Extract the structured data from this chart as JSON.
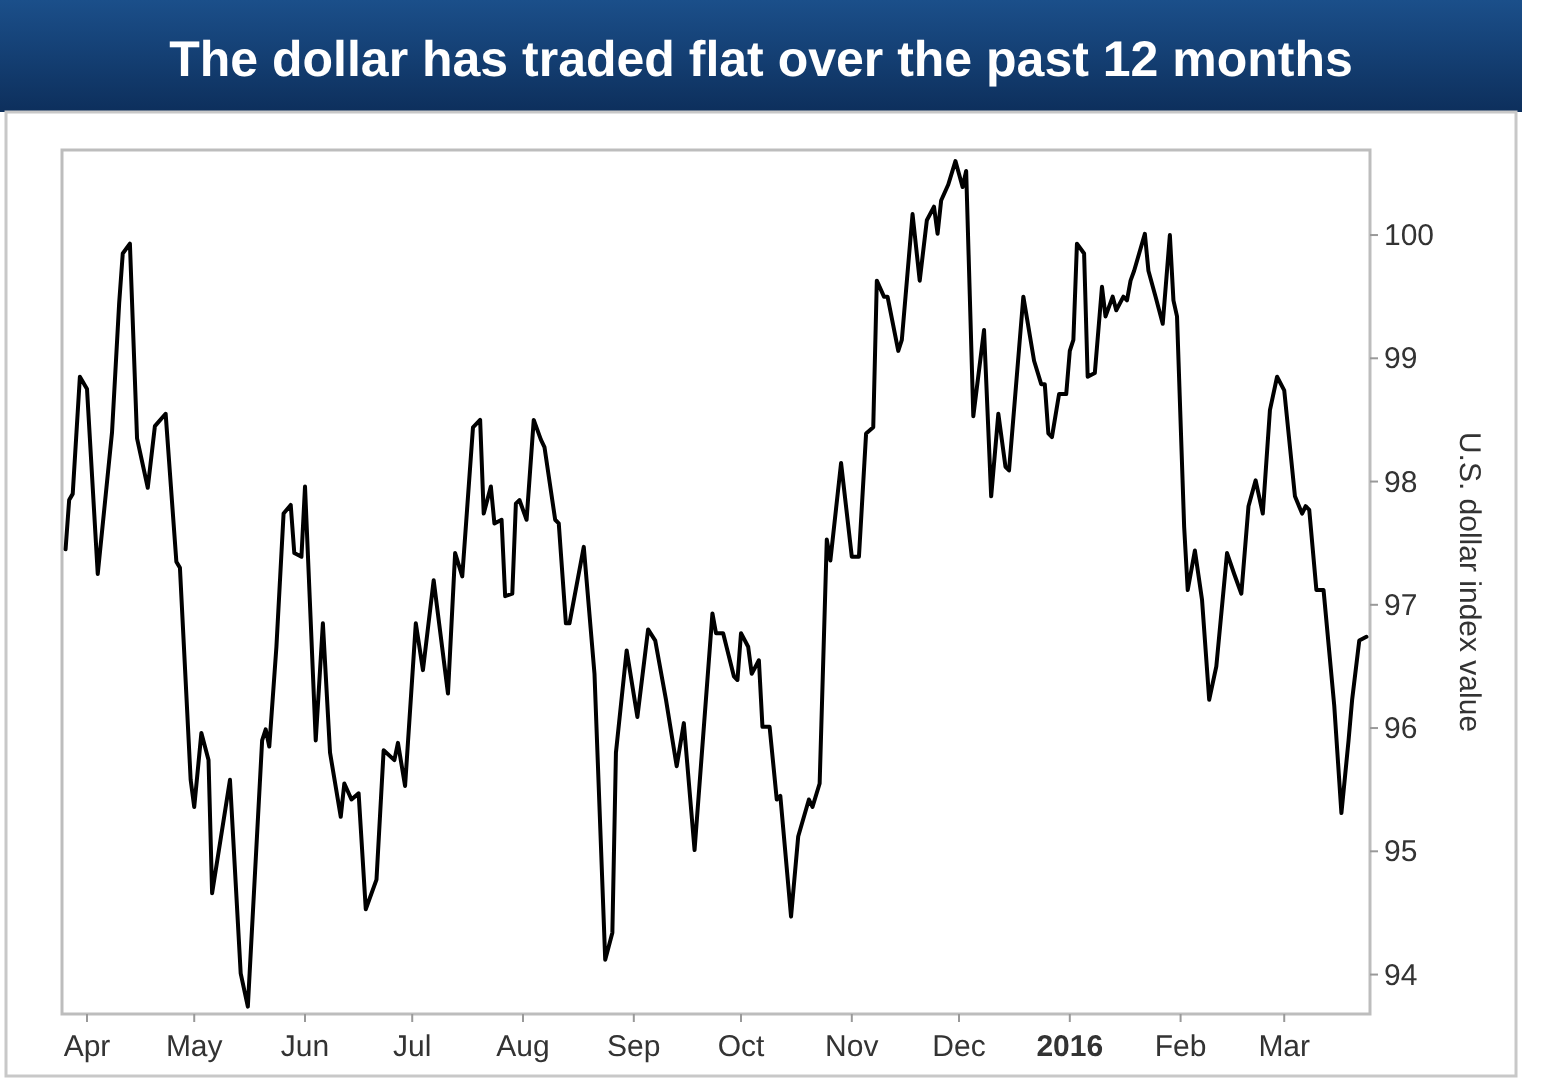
{
  "chart_data": {
    "type": "line",
    "title": "The dollar has traded flat over the past 12 months",
    "ylabel": "U.S. dollar index value",
    "x": [
      "2015-03-26",
      "2015-03-27",
      "2015-03-28",
      "2015-03-30",
      "2015-04-01",
      "2015-04-04",
      "2015-04-08",
      "2015-04-10",
      "2015-04-11",
      "2015-04-13",
      "2015-04-15",
      "2015-04-18",
      "2015-04-20",
      "2015-04-23",
      "2015-04-26",
      "2015-04-27",
      "2015-04-30",
      "2015-05-01",
      "2015-05-03",
      "2015-05-05",
      "2015-05-06",
      "2015-05-11",
      "2015-05-14",
      "2015-05-16",
      "2015-05-20",
      "2015-05-21",
      "2015-05-22",
      "2015-05-24",
      "2015-05-26",
      "2015-05-28",
      "2015-05-29",
      "2015-05-31",
      "2015-06-01",
      "2015-06-04",
      "2015-06-06",
      "2015-06-08",
      "2015-06-11",
      "2015-06-12",
      "2015-06-14",
      "2015-06-16",
      "2015-06-18",
      "2015-06-21",
      "2015-06-23",
      "2015-06-26",
      "2015-06-27",
      "2015-06-29",
      "2015-07-02",
      "2015-07-04",
      "2015-07-07",
      "2015-07-09",
      "2015-07-11",
      "2015-07-13",
      "2015-07-15",
      "2015-07-18",
      "2015-07-20",
      "2015-07-21",
      "2015-07-23",
      "2015-07-24",
      "2015-07-26",
      "2015-07-27",
      "2015-07-29",
      "2015-07-30",
      "2015-07-31",
      "2015-08-02",
      "2015-08-04",
      "2015-08-06",
      "2015-08-07",
      "2015-08-10",
      "2015-08-11",
      "2015-08-13",
      "2015-08-14",
      "2015-08-18",
      "2015-08-21",
      "2015-08-24",
      "2015-08-26",
      "2015-08-27",
      "2015-08-30",
      "2015-09-02",
      "2015-09-05",
      "2015-09-07",
      "2015-09-10",
      "2015-09-13",
      "2015-09-15",
      "2015-09-18",
      "2015-09-23",
      "2015-09-24",
      "2015-09-26",
      "2015-09-29",
      "2015-09-30",
      "2015-10-01",
      "2015-10-03",
      "2015-10-04",
      "2015-10-06",
      "2015-10-07",
      "2015-10-09",
      "2015-10-11",
      "2015-10-12",
      "2015-10-15",
      "2015-10-17",
      "2015-10-20",
      "2015-10-21",
      "2015-10-23",
      "2015-10-25",
      "2015-10-26",
      "2015-10-29",
      "2015-11-01",
      "2015-11-03",
      "2015-11-05",
      "2015-11-07",
      "2015-11-08",
      "2015-11-10",
      "2015-11-11",
      "2015-11-14",
      "2015-11-15",
      "2015-11-18",
      "2015-11-20",
      "2015-11-22",
      "2015-11-24",
      "2015-11-25",
      "2015-11-26",
      "2015-11-28",
      "2015-11-30",
      "2015-12-02",
      "2015-12-03",
      "2015-12-05",
      "2015-12-08",
      "2015-12-10",
      "2015-12-12",
      "2015-12-14",
      "2015-12-15",
      "2015-12-19",
      "2015-12-22",
      "2015-12-24",
      "2015-12-25",
      "2015-12-26",
      "2015-12-27",
      "2015-12-29",
      "2015-12-31",
      "2016-01-01",
      "2016-01-02",
      "2016-01-03",
      "2016-01-05",
      "2016-01-06",
      "2016-01-08",
      "2016-01-10",
      "2016-01-11",
      "2016-01-13",
      "2016-01-14",
      "2016-01-16",
      "2016-01-17",
      "2016-01-18",
      "2016-01-19",
      "2016-01-22",
      "2016-01-23",
      "2016-01-25",
      "2016-01-27",
      "2016-01-29",
      "2016-01-30",
      "2016-01-31",
      "2016-02-02",
      "2016-02-03",
      "2016-02-05",
      "2016-02-07",
      "2016-02-09",
      "2016-02-11",
      "2016-02-14",
      "2016-02-16",
      "2016-02-18",
      "2016-02-20",
      "2016-02-22",
      "2016-02-24",
      "2016-02-26",
      "2016-02-28",
      "2016-03-01",
      "2016-03-04",
      "2016-03-06",
      "2016-03-07",
      "2016-03-08",
      "2016-03-10",
      "2016-03-11",
      "2016-03-12",
      "2016-03-15",
      "2016-03-17",
      "2016-03-19",
      "2016-03-20",
      "2016-03-22",
      "2016-03-24"
    ],
    "series": [
      {
        "color": "#000000",
        "values": [
          97.45,
          97.85,
          97.9,
          98.85,
          98.75,
          97.25,
          98.4,
          99.45,
          99.85,
          99.93,
          98.35,
          97.95,
          98.45,
          98.55,
          97.35,
          97.3,
          95.58,
          95.36,
          95.96,
          95.74,
          94.66,
          95.58,
          94.01,
          93.74,
          95.9,
          95.99,
          95.85,
          96.66,
          97.74,
          97.81,
          97.42,
          97.39,
          97.96,
          95.9,
          96.85,
          95.8,
          95.28,
          95.55,
          95.42,
          95.47,
          94.53,
          94.77,
          95.82,
          95.74,
          95.88,
          95.53,
          96.85,
          96.47,
          97.2,
          96.74,
          96.28,
          97.42,
          97.23,
          98.44,
          98.5,
          97.74,
          97.96,
          97.66,
          97.69,
          97.07,
          97.09,
          97.82,
          97.85,
          97.69,
          98.5,
          98.34,
          98.28,
          97.69,
          97.66,
          96.85,
          96.85,
          97.47,
          96.44,
          94.12,
          94.34,
          95.8,
          96.63,
          96.09,
          96.8,
          96.71,
          96.23,
          95.69,
          96.04,
          95.01,
          96.93,
          96.77,
          96.77,
          96.42,
          96.39,
          96.77,
          96.66,
          96.44,
          96.55,
          96.01,
          96.01,
          95.42,
          95.45,
          94.47,
          95.12,
          95.42,
          95.36,
          95.55,
          97.53,
          97.36,
          98.15,
          97.39,
          97.39,
          98.39,
          98.44,
          99.63,
          99.5,
          99.5,
          99.06,
          99.15,
          100.17,
          99.63,
          100.12,
          100.23,
          100.01,
          100.28,
          100.41,
          100.6,
          100.39,
          100.52,
          98.53,
          99.23,
          97.88,
          98.55,
          98.12,
          98.09,
          99.5,
          98.98,
          98.79,
          98.79,
          98.39,
          98.36,
          98.71,
          98.71,
          99.06,
          99.15,
          99.93,
          99.85,
          98.85,
          98.88,
          99.58,
          99.34,
          99.5,
          99.39,
          99.5,
          99.47,
          99.63,
          99.71,
          100.01,
          99.71,
          99.5,
          99.28,
          100.0,
          99.47,
          99.34,
          97.63,
          97.12,
          97.44,
          97.04,
          96.23,
          96.5,
          97.42,
          97.25,
          97.09,
          97.8,
          98.01,
          97.74,
          98.58,
          98.85,
          98.74,
          97.88,
          97.74,
          97.8,
          97.77,
          97.12,
          97.12,
          97.12,
          96.18,
          95.31,
          95.9,
          96.23,
          96.71,
          96.74
        ]
      }
    ],
    "xlim": [
      "2015-03-25",
      "2016-03-25"
    ],
    "xticks": [
      {
        "value": "2015-04-01",
        "label": "Apr"
      },
      {
        "value": "2015-05-01",
        "label": "May"
      },
      {
        "value": "2015-06-01",
        "label": "Jun"
      },
      {
        "value": "2015-07-01",
        "label": "Jul"
      },
      {
        "value": "2015-08-01",
        "label": "Aug"
      },
      {
        "value": "2015-09-01",
        "label": "Sep"
      },
      {
        "value": "2015-10-01",
        "label": "Oct"
      },
      {
        "value": "2015-11-01",
        "label": "Nov"
      },
      {
        "value": "2015-12-01",
        "label": "Dec"
      },
      {
        "value": "2016-01-01",
        "label": "2016"
      },
      {
        "value": "2016-02-01",
        "label": "Feb"
      },
      {
        "value": "2016-03-01",
        "label": "Mar"
      }
    ],
    "ylim": [
      93.68,
      100.69
    ],
    "yticks": [
      94,
      95,
      96,
      97,
      98,
      99,
      100
    ],
    "grid": false,
    "marker": "none",
    "line_style": "solid"
  }
}
